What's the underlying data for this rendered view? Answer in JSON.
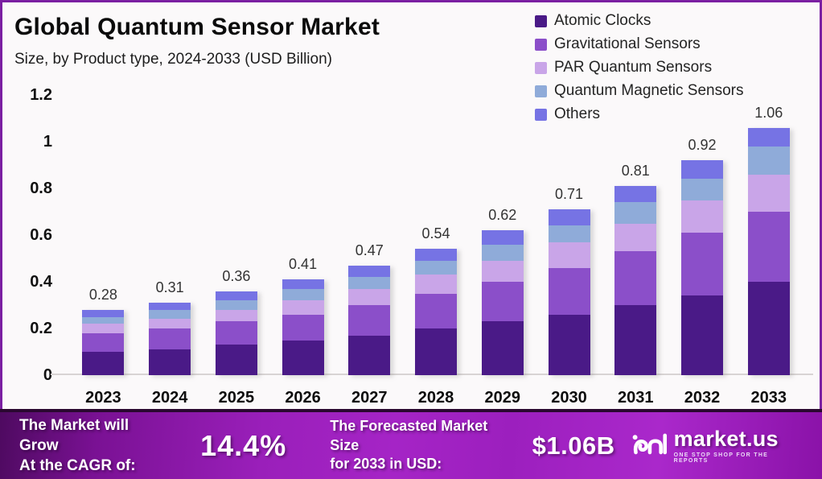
{
  "header": {
    "title": "Global Quantum Sensor Market",
    "subtitle": "Size, by Product type, 2024-2033 (USD Billion)"
  },
  "colors": {
    "accent_border": "#7b1fa2",
    "banner_dark": "#4e0a60",
    "banner_bright": "#a524c6",
    "atomic_clocks": "#4a1a87",
    "gravitational_sensors": "#8b4fc9",
    "par_quantum_sensors": "#c9a5e8",
    "quantum_magnetic_sensors": "#8fabd9",
    "others": "#7673e4"
  },
  "chart_data": {
    "type": "bar",
    "stacked": true,
    "title": "Global Quantum Sensor Market",
    "subtitle": "Size, by Product type, 2024-2033 (USD Billion)",
    "xlabel": "",
    "ylabel": "",
    "ylim": [
      0,
      1.2
    ],
    "yticks": [
      "0",
      "0.2",
      "0.4",
      "0.6",
      "0.8",
      "1",
      "1.2"
    ],
    "grid": false,
    "legend_position": "top-right",
    "categories": [
      "2023",
      "2024",
      "2025",
      "2026",
      "2027",
      "2028",
      "2029",
      "2030",
      "2031",
      "2032",
      "2033"
    ],
    "totals": [
      "0.28",
      "0.31",
      "0.36",
      "0.41",
      "0.47",
      "0.54",
      "0.62",
      "0.71",
      "0.81",
      "0.92",
      "1.06"
    ],
    "series": [
      {
        "name": "Atomic Clocks",
        "color": "#4a1a87",
        "values": [
          0.1,
          0.11,
          0.13,
          0.15,
          0.17,
          0.2,
          0.23,
          0.26,
          0.3,
          0.34,
          0.4
        ]
      },
      {
        "name": "Gravitational Sensors",
        "color": "#8b4fc9",
        "values": [
          0.08,
          0.09,
          0.1,
          0.11,
          0.13,
          0.15,
          0.17,
          0.2,
          0.23,
          0.27,
          0.3
        ]
      },
      {
        "name": "PAR Quantum Sensors",
        "color": "#c9a5e8",
        "values": [
          0.04,
          0.04,
          0.05,
          0.06,
          0.07,
          0.08,
          0.09,
          0.11,
          0.12,
          0.14,
          0.16
        ]
      },
      {
        "name": "Quantum Magnetic Sensors",
        "color": "#8fabd9",
        "values": [
          0.03,
          0.04,
          0.04,
          0.05,
          0.05,
          0.06,
          0.07,
          0.07,
          0.09,
          0.09,
          0.12
        ]
      },
      {
        "name": "Others",
        "color": "#7673e4",
        "values": [
          0.03,
          0.03,
          0.04,
          0.04,
          0.05,
          0.05,
          0.06,
          0.07,
          0.07,
          0.08,
          0.08
        ]
      }
    ]
  },
  "footer": {
    "cagr_label_line1": "The Market will Grow",
    "cagr_label_line2": "At the CAGR of:",
    "cagr_value": "14.4%",
    "forecast_label_line1": "The Forecasted Market Size",
    "forecast_label_line2": "for 2033 in USD:",
    "forecast_value": "$1.06B",
    "brand": {
      "name": "market.us",
      "tagline": "ONE STOP SHOP FOR THE REPORTS"
    }
  }
}
